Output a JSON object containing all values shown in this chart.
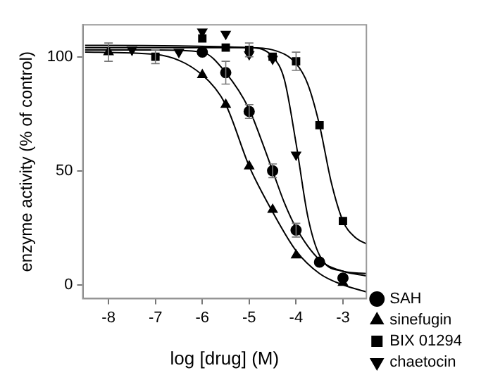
{
  "chart_data": {
    "type": "scatter",
    "xlabel": "log [drug] (M)",
    "ylabel": "enzyme activity (% of control)",
    "xlim": [
      -8.55,
      -2.5
    ],
    "xticks": [
      -8,
      -7,
      -6,
      -5,
      -4,
      -3
    ],
    "ylim": [
      -6,
      114
    ],
    "yticks": [
      0,
      50,
      100
    ],
    "grid": false,
    "legend": "bottom right",
    "series": [
      {
        "name": "SAH",
        "marker": "circle",
        "color": "#000000",
        "x": [
          -6,
          -5.5,
          -5,
          -4.5,
          -4,
          -3.5,
          -3
        ],
        "values": [
          102,
          93,
          76,
          50,
          24,
          10,
          3
        ],
        "errors": [
          null,
          5,
          3,
          3,
          3,
          null,
          null
        ]
      },
      {
        "name": "sinefugin",
        "marker": "triangle",
        "color": "#000000",
        "x": [
          -8,
          -6,
          -5.5,
          -5,
          -4.5,
          -4,
          -3
        ],
        "values": [
          102,
          92,
          79,
          52,
          33,
          13,
          1
        ],
        "errors": [
          4,
          null,
          null,
          null,
          null,
          null,
          null
        ]
      },
      {
        "name": "BIX 01294",
        "marker": "square",
        "color": "#000000",
        "x": [
          -7,
          -6,
          -5.5,
          -5,
          -4.5,
          -4,
          -3.5,
          -3
        ],
        "values": [
          100,
          108,
          104,
          103,
          100,
          98,
          70,
          28
        ],
        "errors": [
          3,
          null,
          null,
          3,
          null,
          4,
          null,
          null
        ]
      },
      {
        "name": "chaetocin",
        "marker": "triangle-down",
        "color": "#000000",
        "x": [
          -7.5,
          -6.5,
          -6,
          -5.5,
          -5,
          -4.5,
          -4
        ],
        "values": [
          103,
          102,
          111,
          110,
          101,
          99,
          57
        ]
      },
      {
        "type": "line",
        "marker": "none",
        "color": "#000000",
        "x": [
          -8.5,
          -7,
          -6,
          -5.5,
          -5,
          -4.75,
          -4.5,
          -4.25,
          -4,
          -3.5,
          -3,
          -2.5
        ],
        "values": [
          103,
          103,
          102,
          93,
          77,
          64,
          50,
          36,
          25,
          11,
          6,
          4
        ]
      },
      {
        "type": "line",
        "marker": "none",
        "color": "#000000",
        "x": [
          -8.5,
          -7,
          -6,
          -5.5,
          -5,
          -4.5,
          -4,
          -3.5,
          -3,
          -2.5
        ],
        "values": [
          102,
          101,
          92,
          79,
          52,
          32,
          15,
          5,
          0,
          -3
        ]
      },
      {
        "type": "line",
        "marker": "none",
        "color": "#000000",
        "x": [
          -8.5,
          -5,
          -4.5,
          -4,
          -3.75,
          -3.5,
          -3.25,
          -3,
          -2.75,
          -2.5
        ],
        "values": [
          104,
          104,
          103,
          97,
          88,
          70,
          45,
          28,
          21,
          18
        ]
      },
      {
        "type": "line",
        "marker": "none",
        "color": "#000000",
        "x": [
          -8.5,
          -5,
          -4.5,
          -4.25,
          -4,
          -3.75,
          -3.5,
          -3,
          -2.5
        ],
        "values": [
          105,
          104,
          100,
          90,
          62,
          30,
          13,
          6,
          5
        ]
      }
    ]
  }
}
